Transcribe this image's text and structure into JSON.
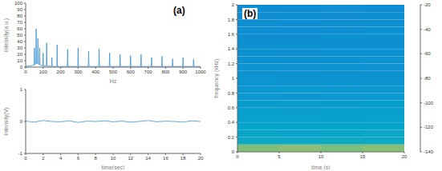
{
  "chart_data": [
    {
      "type": "line",
      "annotation": "(a)",
      "x_label": "Hz",
      "y_label": "Intensity(a.u.)",
      "color": "#3d8fd1",
      "grid": false,
      "x": [
        0,
        48,
        50,
        52,
        58,
        60,
        62,
        68,
        70,
        72,
        78,
        80,
        82,
        98,
        100,
        102,
        118,
        120,
        122,
        148,
        150,
        152,
        178,
        180,
        182,
        238,
        240,
        242,
        298,
        300,
        302,
        358,
        360,
        362,
        418,
        420,
        422,
        478,
        480,
        482,
        538,
        540,
        542,
        598,
        600,
        602,
        658,
        660,
        662,
        718,
        720,
        722,
        778,
        780,
        782,
        838,
        840,
        842,
        898,
        900,
        902,
        958,
        960,
        962,
        1000
      ],
      "values": [
        1,
        3,
        30,
        4,
        5,
        60,
        6,
        5,
        45,
        5,
        4,
        30,
        3,
        2,
        22,
        2,
        2,
        38,
        2,
        1,
        15,
        1,
        1,
        35,
        1,
        1,
        28,
        1,
        1,
        30,
        1,
        1,
        25,
        1,
        1,
        28,
        1,
        1,
        22,
        1,
        1,
        20,
        1,
        1,
        18,
        1,
        1,
        20,
        1,
        1,
        15,
        1,
        1,
        17,
        1,
        1,
        13,
        1,
        1,
        15,
        1,
        1,
        12,
        1,
        1
      ],
      "xlim": [
        0,
        1000
      ],
      "xticks": [
        0,
        100,
        200,
        300,
        400,
        500,
        600,
        700,
        800,
        900,
        1000
      ],
      "ylim": [
        0,
        100
      ],
      "yticks": [
        0,
        10,
        20,
        30,
        40,
        50,
        60,
        70,
        80,
        90,
        100
      ]
    },
    {
      "type": "line",
      "x_label": "time(sec)",
      "y_label": "Intensity(V)",
      "color": "#3d8fd1",
      "grid": false,
      "x": [
        0,
        1,
        2,
        3,
        4,
        5,
        6,
        7,
        8,
        9,
        10,
        11,
        12,
        13,
        14,
        15,
        16,
        17,
        18,
        19,
        20
      ],
      "values": [
        0.01,
        -0.02,
        0.03,
        0,
        -0.01,
        0.02,
        -0.03,
        0.01,
        0,
        0.02,
        -0.01,
        0.01,
        -0.02,
        0,
        0.03,
        -0.01,
        0.01,
        0,
        -0.02,
        0.02,
        0
      ],
      "xlim": [
        0,
        20
      ],
      "xticks": [
        0,
        2,
        4,
        6,
        8,
        10,
        12,
        14,
        16,
        18,
        20
      ],
      "ylim": [
        -1,
        1
      ],
      "yticks": [
        -1,
        0,
        1
      ]
    },
    {
      "type": "heatmap",
      "annotation": "(b)",
      "x_label": "time (s)",
      "y_label": "frequency (kHz)",
      "x_edges": [
        0,
        5,
        10,
        15,
        20
      ],
      "y_edges": [
        0,
        0.1,
        0.2,
        0.3,
        0.4,
        0.5,
        0.6,
        0.7,
        0.8,
        0.9,
        1,
        1.1,
        1.2,
        1.3,
        1.4,
        1.5,
        1.6,
        1.7,
        1.8,
        1.9,
        2
      ],
      "cells": [
        [
          -66,
          -64,
          -67,
          -65
        ],
        [
          -92,
          -93,
          -91,
          -92
        ],
        [
          -94,
          -95,
          -94,
          -93
        ],
        [
          -95,
          -96,
          -95,
          -95
        ],
        [
          -96,
          -96,
          -97,
          -96
        ],
        [
          -97,
          -98,
          -97,
          -97
        ],
        [
          -99,
          -98,
          -99,
          -98
        ],
        [
          -100,
          -101,
          -100,
          -100
        ],
        [
          -101,
          -100,
          -101,
          -101
        ],
        [
          -101,
          -102,
          -101,
          -102
        ],
        [
          -102,
          -102,
          -103,
          -102
        ],
        [
          -102,
          -103,
          -102,
          -103
        ],
        [
          -103,
          -103,
          -103,
          -102
        ],
        [
          -103,
          -104,
          -103,
          -103
        ],
        [
          -103,
          -103,
          -104,
          -104
        ],
        [
          -104,
          -104,
          -103,
          -104
        ],
        [
          -104,
          -104,
          -104,
          -103
        ],
        [
          -104,
          -105,
          -104,
          -104
        ],
        [
          -105,
          -104,
          -105,
          -104
        ],
        [
          -105,
          -105,
          -104,
          -105
        ]
      ],
      "xlim": [
        0,
        20
      ],
      "xticks": [
        0,
        5,
        10,
        15,
        20
      ],
      "ylim": [
        0,
        2
      ],
      "yticks": [
        0,
        0.2,
        0.4,
        0.6,
        0.8,
        1,
        1.2,
        1.4,
        1.6,
        1.8,
        2
      ],
      "clim": [
        -140,
        -20
      ],
      "cticks": [
        -140,
        -120,
        -100,
        -80,
        -60,
        -40,
        -20
      ]
    }
  ]
}
